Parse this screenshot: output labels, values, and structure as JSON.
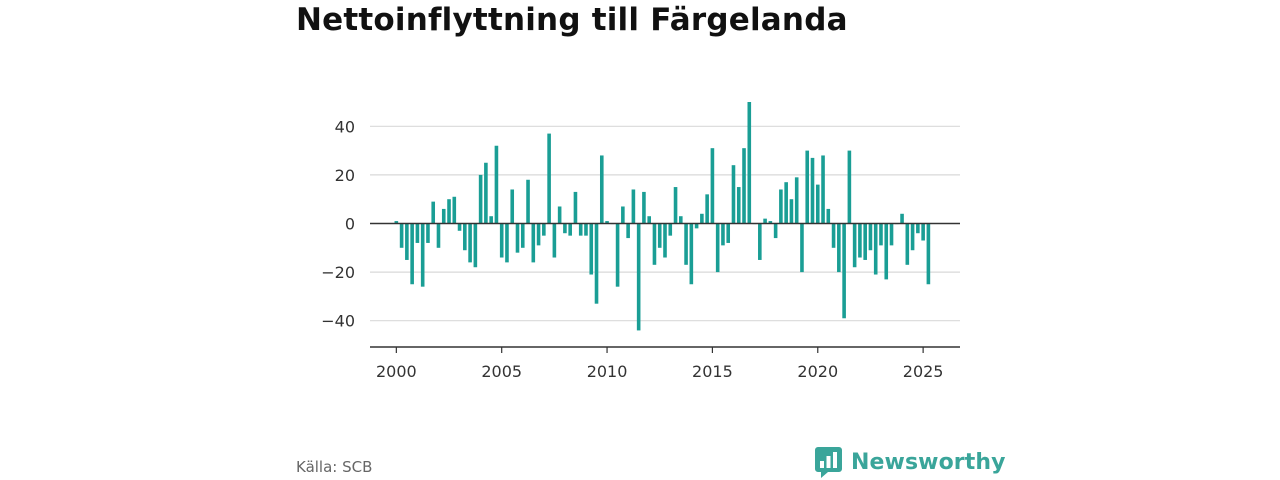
{
  "title": "Nettoinflyttning till Färgelanda",
  "source": "Källa: SCB",
  "brand": {
    "name": "Newsworthy",
    "icon": "bar-chart-speech-bubble-icon"
  },
  "colors": {
    "bar": "#1a9e95",
    "grid": "#d9d9d9",
    "zero_line": "#333333",
    "brand": "#3aa59a"
  },
  "chart_data": {
    "type": "bar",
    "title": "Nettoinflyttning till Färgelanda",
    "xlabel": "",
    "ylabel": "",
    "frequency": "quarterly",
    "ylim": [
      -50,
      50
    ],
    "yticks": [
      40,
      20,
      0,
      -20,
      -40
    ],
    "ytick_labels": [
      "40",
      "20",
      "0",
      "−20",
      "−40"
    ],
    "xlim": [
      1998.75,
      2026.75
    ],
    "xticks": [
      2000,
      2005,
      2010,
      2015,
      2020,
      2025
    ],
    "xtick_labels": [
      "2000",
      "2005",
      "2010",
      "2015",
      "2020",
      "2025"
    ],
    "grid": true,
    "categories": [
      "2000 Q1",
      "2000 Q2",
      "2000 Q3",
      "2000 Q4",
      "2001 Q1",
      "2001 Q2",
      "2001 Q3",
      "2001 Q4",
      "2002 Q1",
      "2002 Q2",
      "2002 Q3",
      "2002 Q4",
      "2003 Q1",
      "2003 Q2",
      "2003 Q3",
      "2003 Q4",
      "2004 Q1",
      "2004 Q2",
      "2004 Q3",
      "2004 Q4",
      "2005 Q1",
      "2005 Q2",
      "2005 Q3",
      "2005 Q4",
      "2006 Q1",
      "2006 Q2",
      "2006 Q3",
      "2006 Q4",
      "2007 Q1",
      "2007 Q2",
      "2007 Q3",
      "2007 Q4",
      "2008 Q1",
      "2008 Q2",
      "2008 Q3",
      "2008 Q4",
      "2009 Q1",
      "2009 Q2",
      "2009 Q3",
      "2009 Q4",
      "2010 Q1",
      "2010 Q2",
      "2010 Q3",
      "2010 Q4",
      "2011 Q1",
      "2011 Q2",
      "2011 Q3",
      "2011 Q4",
      "2012 Q1",
      "2012 Q2",
      "2012 Q3",
      "2012 Q4",
      "2013 Q1",
      "2013 Q2",
      "2013 Q3",
      "2013 Q4",
      "2014 Q1",
      "2014 Q2",
      "2014 Q3",
      "2014 Q4",
      "2015 Q1",
      "2015 Q2",
      "2015 Q3",
      "2015 Q4",
      "2016 Q1",
      "2016 Q2",
      "2016 Q3",
      "2016 Q4",
      "2017 Q1",
      "2017 Q2",
      "2017 Q3",
      "2017 Q4",
      "2018 Q1",
      "2018 Q2",
      "2018 Q3",
      "2018 Q4",
      "2019 Q1",
      "2019 Q2",
      "2019 Q3",
      "2019 Q4",
      "2020 Q1",
      "2020 Q2",
      "2020 Q3",
      "2020 Q4",
      "2021 Q1",
      "2021 Q2",
      "2021 Q3",
      "2021 Q4",
      "2022 Q1",
      "2022 Q2",
      "2022 Q3",
      "2022 Q4",
      "2023 Q1",
      "2023 Q2",
      "2023 Q3",
      "2023 Q4",
      "2024 Q1",
      "2024 Q2",
      "2024 Q3",
      "2024 Q4",
      "2025 Q1",
      "2025 Q2"
    ],
    "x": [
      2000.0,
      2000.25,
      2000.5,
      2000.75,
      2001.0,
      2001.25,
      2001.5,
      2001.75,
      2002.0,
      2002.25,
      2002.5,
      2002.75,
      2003.0,
      2003.25,
      2003.5,
      2003.75,
      2004.0,
      2004.25,
      2004.5,
      2004.75,
      2005.0,
      2005.25,
      2005.5,
      2005.75,
      2006.0,
      2006.25,
      2006.5,
      2006.75,
      2007.0,
      2007.25,
      2007.5,
      2007.75,
      2008.0,
      2008.25,
      2008.5,
      2008.75,
      2009.0,
      2009.25,
      2009.5,
      2009.75,
      2010.0,
      2010.25,
      2010.5,
      2010.75,
      2011.0,
      2011.25,
      2011.5,
      2011.75,
      2012.0,
      2012.25,
      2012.5,
      2012.75,
      2013.0,
      2013.25,
      2013.5,
      2013.75,
      2014.0,
      2014.25,
      2014.5,
      2014.75,
      2015.0,
      2015.25,
      2015.5,
      2015.75,
      2016.0,
      2016.25,
      2016.5,
      2016.75,
      2017.0,
      2017.25,
      2017.5,
      2017.75,
      2018.0,
      2018.25,
      2018.5,
      2018.75,
      2019.0,
      2019.25,
      2019.5,
      2019.75,
      2020.0,
      2020.25,
      2020.5,
      2020.75,
      2021.0,
      2021.25,
      2021.5,
      2021.75,
      2022.0,
      2022.25,
      2022.5,
      2022.75,
      2023.0,
      2023.25,
      2023.5,
      2023.75,
      2024.0,
      2024.25,
      2024.5,
      2024.75,
      2025.0,
      2025.25
    ],
    "values": [
      1,
      -10,
      -15,
      -25,
      -8,
      -26,
      -8,
      9,
      -10,
      6,
      10,
      11,
      -3,
      -11,
      -16,
      -18,
      20,
      25,
      3,
      32,
      -14,
      -16,
      14,
      -12,
      -10,
      18,
      -16,
      -9,
      -5,
      37,
      -14,
      7,
      -4,
      -5,
      13,
      -5,
      -5,
      -21,
      -33,
      28,
      1,
      0,
      -26,
      7,
      -6,
      14,
      -44,
      13,
      3,
      -17,
      -10,
      -14,
      -5,
      15,
      3,
      -17,
      -25,
      -2,
      4,
      12,
      31,
      -20,
      -9,
      -8,
      24,
      15,
      31,
      50,
      0,
      -15,
      2,
      1,
      -6,
      14,
      17,
      10,
      19,
      -20,
      30,
      27,
      16,
      28,
      6,
      -10,
      -20,
      -39,
      30,
      -18,
      -14,
      -15,
      -11,
      -21,
      -9,
      -23,
      -9,
      0,
      4,
      -17,
      -11,
      -4,
      -7,
      -25
    ]
  }
}
